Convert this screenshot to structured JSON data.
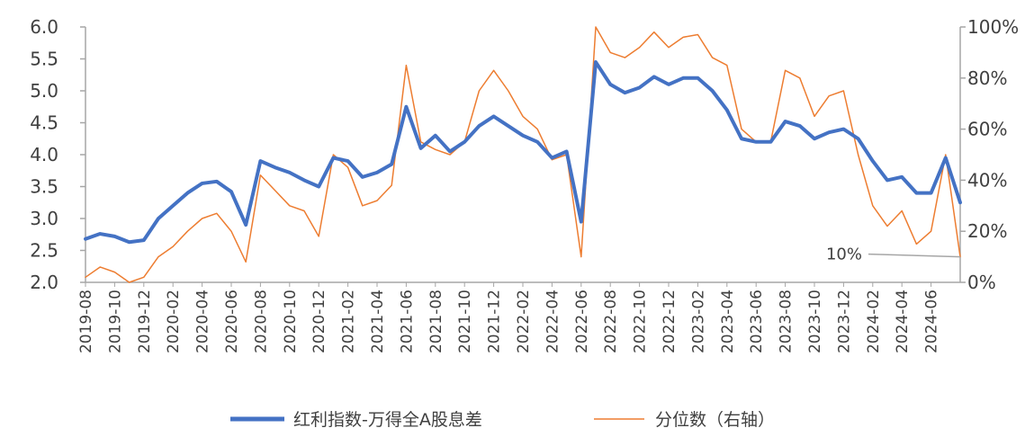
{
  "chart_data": {
    "type": "line",
    "title": "",
    "xlabel": "",
    "ylabel": "",
    "ylim": [
      2.0,
      6.0
    ],
    "y2lim": [
      0,
      100
    ],
    "yticks": [
      "2.0",
      "2.5",
      "3.0",
      "3.5",
      "4.0",
      "4.5",
      "5.0",
      "5.5",
      "6.0"
    ],
    "y2ticks": [
      "0%",
      "20%",
      "40%",
      "60%",
      "80%",
      "100%"
    ],
    "xticks": [
      "2019-08",
      "2019-10",
      "2019-12",
      "2020-02",
      "2020-04",
      "2020-06",
      "2020-08",
      "2020-10",
      "2020-12",
      "2021-02",
      "2021-04",
      "2021-06",
      "2021-08",
      "2021-10",
      "2021-12",
      "2022-02",
      "2022-04",
      "2022-06",
      "2022-08",
      "2022-10",
      "2022-12",
      "2023-02",
      "2023-04",
      "2023-06",
      "2023-08",
      "2023-10",
      "2023-12",
      "2024-02",
      "2024-04",
      "2024-06"
    ],
    "grid": false,
    "legend_position": "bottom",
    "x": [
      "2019-08",
      "2019-09",
      "2019-10",
      "2019-11",
      "2019-12",
      "2020-01",
      "2020-02",
      "2020-03",
      "2020-04",
      "2020-05",
      "2020-06",
      "2020-07",
      "2020-08",
      "2020-09",
      "2020-10",
      "2020-11",
      "2020-12",
      "2021-01",
      "2021-02",
      "2021-03",
      "2021-04",
      "2021-05",
      "2021-06",
      "2021-07",
      "2021-08",
      "2021-09",
      "2021-10",
      "2021-11",
      "2021-12",
      "2022-01",
      "2022-02",
      "2022-03",
      "2022-04",
      "2022-05",
      "2022-06",
      "2022-07",
      "2022-08",
      "2022-09",
      "2022-10",
      "2022-11",
      "2022-12",
      "2023-01",
      "2023-02",
      "2023-03",
      "2023-04",
      "2023-05",
      "2023-06",
      "2023-07",
      "2023-08",
      "2023-09",
      "2023-10",
      "2023-11",
      "2023-12",
      "2024-01",
      "2024-02",
      "2024-03",
      "2024-04",
      "2024-05",
      "2024-06",
      "2024-07",
      "2024-08"
    ],
    "series": [
      {
        "name": "红利指数-万得全A股息差",
        "axis": "left",
        "color": "#4472C4",
        "values": [
          2.68,
          2.76,
          2.72,
          2.63,
          2.66,
          3.0,
          3.2,
          3.4,
          3.55,
          3.58,
          3.42,
          2.9,
          3.9,
          3.8,
          3.72,
          3.6,
          3.5,
          3.95,
          3.9,
          3.65,
          3.72,
          3.85,
          4.75,
          4.1,
          4.3,
          4.05,
          4.2,
          4.45,
          4.6,
          4.45,
          4.3,
          4.2,
          3.95,
          4.05,
          2.95,
          5.45,
          5.1,
          4.97,
          5.05,
          5.22,
          5.1,
          5.2,
          5.2,
          5.0,
          4.7,
          4.25,
          4.2,
          4.2,
          4.52,
          4.45,
          4.25,
          4.35,
          4.4,
          4.25,
          3.9,
          3.6,
          3.65,
          3.4,
          3.4,
          3.95,
          3.25
        ]
      },
      {
        "name": "分位数（右轴）",
        "axis": "right",
        "color": "#ED7D31",
        "values": [
          2,
          6,
          4,
          0,
          2,
          10,
          14,
          20,
          25,
          27,
          20,
          8,
          42,
          36,
          30,
          28,
          18,
          50,
          45,
          30,
          32,
          38,
          85,
          55,
          52,
          50,
          55,
          75,
          83,
          75,
          65,
          60,
          48,
          50,
          10,
          100,
          90,
          88,
          92,
          98,
          92,
          96,
          97,
          88,
          85,
          60,
          55,
          55,
          83,
          80,
          65,
          73,
          75,
          50,
          30,
          22,
          28,
          15,
          20,
          50,
          10
        ]
      }
    ],
    "annotations": [
      {
        "text": "10%",
        "series": "分位数（右轴）",
        "at": "2024-08"
      }
    ]
  }
}
